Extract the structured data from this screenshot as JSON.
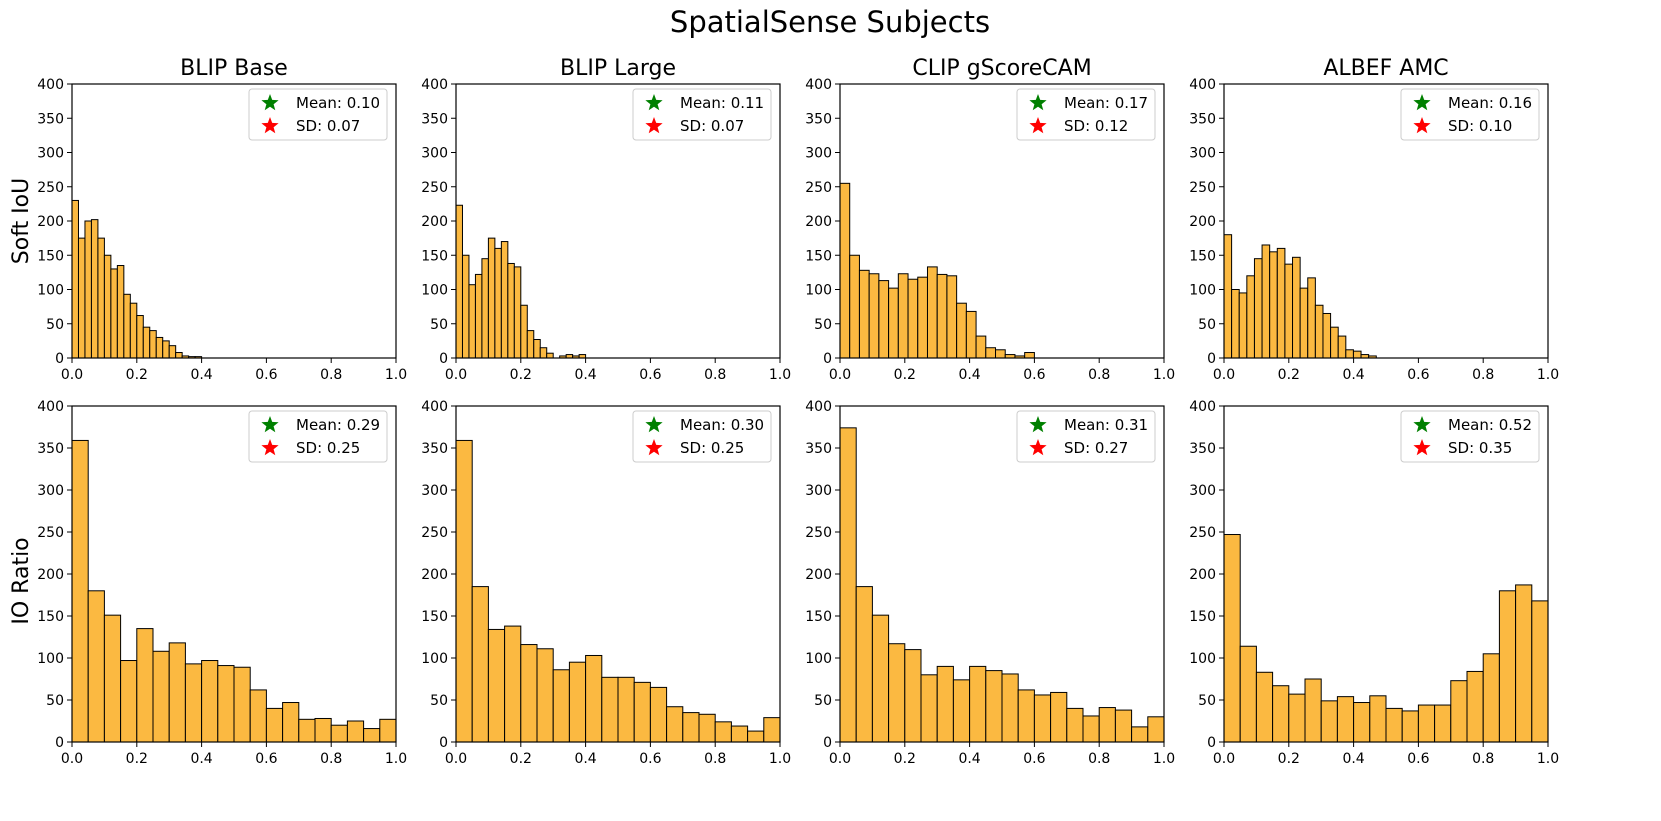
{
  "chart_data": {
    "type": "bar",
    "title": "SpatialSense Subjects",
    "row_labels": [
      "Soft IoU",
      "IO Ratio"
    ],
    "x_ticks": [
      "0.0",
      "0.2",
      "0.4",
      "0.6",
      "0.8",
      "1.0"
    ],
    "y_ticks": [
      "0",
      "50",
      "100",
      "150",
      "200",
      "250",
      "300",
      "350",
      "400"
    ],
    "xlim": [
      0,
      1
    ],
    "ylim": [
      0,
      400
    ],
    "legend_location": "top-right",
    "bar_color": "#fbb941",
    "mean_marker_color": "#008000",
    "sd_marker_color": "#ff0000",
    "panels": [
      {
        "title": "BLIP Base",
        "row": "Soft IoU",
        "bin_width": 0.02,
        "values": [
          230,
          175,
          200,
          202,
          175,
          150,
          130,
          135,
          93,
          80,
          62,
          45,
          40,
          30,
          25,
          18,
          8,
          3,
          2,
          2
        ],
        "mean_label": "Mean: 0.10",
        "sd_label": "SD: 0.07"
      },
      {
        "title": "BLIP Large",
        "row": "Soft IoU",
        "bin_width": 0.02,
        "values": [
          223,
          150,
          107,
          122,
          145,
          175,
          160,
          170,
          138,
          133,
          77,
          40,
          27,
          15,
          7,
          0,
          3,
          5,
          3,
          5
        ],
        "mean_label": "Mean: 0.11",
        "sd_label": "SD: 0.07"
      },
      {
        "title": "CLIP gScoreCAM",
        "row": "Soft IoU",
        "bin_width": 0.03,
        "values": [
          255,
          150,
          128,
          123,
          113,
          102,
          123,
          115,
          118,
          133,
          122,
          120,
          80,
          68,
          32,
          15,
          12,
          5,
          3,
          8
        ],
        "mean_label": "Mean: 0.17",
        "sd_label": "SD: 0.12"
      },
      {
        "title": "ALBEF AMC",
        "row": "Soft IoU",
        "bin_width": 0.0235,
        "values": [
          180,
          100,
          95,
          120,
          145,
          165,
          155,
          160,
          137,
          147,
          102,
          117,
          77,
          65,
          45,
          32,
          12,
          10,
          5,
          3
        ],
        "mean_label": "Mean: 0.16",
        "sd_label": "SD: 0.10"
      },
      {
        "title": "BLIP Base",
        "row": "IO Ratio",
        "bin_width": 0.05,
        "values": [
          359,
          180,
          151,
          97,
          135,
          108,
          118,
          93,
          97,
          91,
          89,
          62,
          40,
          47,
          27,
          28,
          20,
          25,
          16,
          27
        ],
        "mean_label": "Mean: 0.29",
        "sd_label": "SD: 0.25"
      },
      {
        "title": "BLIP Large",
        "row": "IO Ratio",
        "bin_width": 0.05,
        "values": [
          359,
          185,
          134,
          138,
          116,
          111,
          86,
          95,
          103,
          77,
          77,
          71,
          65,
          42,
          35,
          33,
          24,
          19,
          13,
          29
        ],
        "mean_label": "Mean: 0.30",
        "sd_label": "SD: 0.25"
      },
      {
        "title": "CLIP gScoreCAM",
        "row": "IO Ratio",
        "bin_width": 0.05,
        "values": [
          374,
          185,
          151,
          117,
          110,
          80,
          90,
          74,
          90,
          85,
          81,
          62,
          56,
          59,
          40,
          31,
          41,
          38,
          18,
          30
        ],
        "mean_label": "Mean: 0.31",
        "sd_label": "SD: 0.27"
      },
      {
        "title": "ALBEF AMC",
        "row": "IO Ratio",
        "bin_width": 0.05,
        "values": [
          247,
          114,
          83,
          67,
          57,
          75,
          49,
          54,
          47,
          55,
          40,
          37,
          44,
          44,
          73,
          84,
          105,
          180,
          187,
          168
        ],
        "mean_label": "Mean: 0.52",
        "sd_label": "SD: 0.35"
      }
    ]
  }
}
